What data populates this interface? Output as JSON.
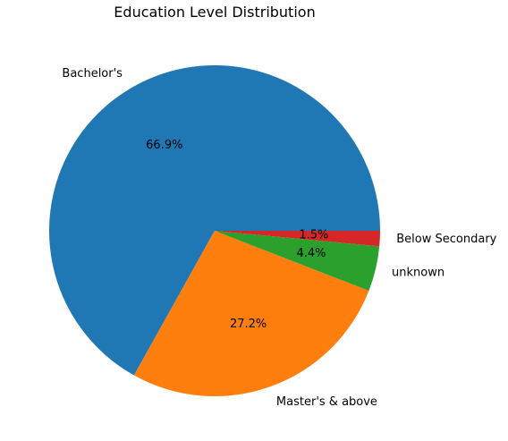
{
  "chart_data": {
    "type": "pie",
    "title": "Education Level Distribution",
    "categories": [
      "Bachelor's",
      "Master's & above",
      "unknown",
      "Below Secondary"
    ],
    "values": [
      66.9,
      27.2,
      4.4,
      1.5
    ],
    "percent_labels": [
      "66.9%",
      "27.2%",
      "4.4%",
      "1.5%"
    ],
    "colors": [
      "#1f77b4",
      "#ff7f0e",
      "#2ca02c",
      "#d62728"
    ],
    "start_angle_deg": 0,
    "direction": "counterclockwise",
    "legend": "none"
  }
}
